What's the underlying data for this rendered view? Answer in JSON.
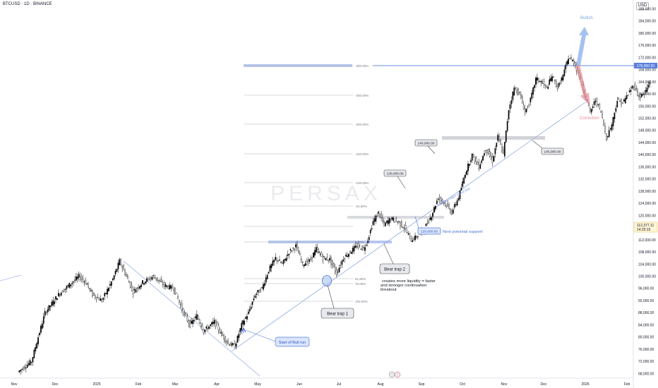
{
  "header": {
    "symbol_title": "BTCUSD · 1D · BINANCE",
    "currency": "USD",
    "watermark": "PERSAX"
  },
  "colors": {
    "up_candle": "#000000",
    "down_candle": "#ffffff",
    "trendline": "#7e9be0",
    "level_band": "#6d8fe0",
    "fib_line": "#b2b5be",
    "bullish": "#7fa6e8",
    "correction": "#e68a94"
  },
  "chart_data": {
    "type": "candlestick",
    "x_ticks": [
      "Nov",
      "Dec",
      "2025",
      "Feb",
      "Mar",
      "Apr",
      "May",
      "Jun",
      "Jul",
      "Aug",
      "Sep",
      "Oct",
      "Nov",
      "Dec",
      "2026",
      "Feb"
    ],
    "y_ticks": [
      68000,
      72000,
      76000,
      80000,
      84000,
      88000,
      92000,
      96000,
      100000,
      104000,
      108000,
      112000,
      116000,
      120000,
      124000,
      128000,
      132000,
      136000,
      140000,
      144000,
      148000,
      152000,
      156000,
      160000,
      164000,
      168000,
      172000,
      176000,
      180000,
      184000,
      188000
    ],
    "y_tick_labels": [
      "68,000.00",
      "72,000.00",
      "76,000.00",
      "80,000.00",
      "84,000.00",
      "88,000.00",
      "92,000.00",
      "96,000.00",
      "100,000.00",
      "104,000.00",
      "108,000.00",
      "112,000.00",
      "116,000.00",
      "120,000.00",
      "124,000.00",
      "128,000.00",
      "132,000.00",
      "136,000.00",
      "140,000.00",
      "144,000.00",
      "148,000.00",
      "152,000.00",
      "156,000.00",
      "160,000.00",
      "164,000.00",
      "168,000.00",
      "172,000.00",
      "176,000.00",
      "180,000.00",
      "184,000.00",
      "188,000.00"
    ],
    "ylim": [
      66500,
      190000
    ],
    "x_range_days": [
      -10,
      450
    ],
    "price_path": [
      [
        0,
        68500
      ],
      [
        10,
        72000
      ],
      [
        20,
        88000
      ],
      [
        30,
        94000
      ],
      [
        40,
        98000
      ],
      [
        45,
        100000
      ],
      [
        50,
        98000
      ],
      [
        55,
        94000
      ],
      [
        62,
        92000
      ],
      [
        70,
        99000
      ],
      [
        75,
        105000
      ],
      [
        80,
        100000
      ],
      [
        85,
        95000
      ],
      [
        92,
        98000
      ],
      [
        100,
        100000
      ],
      [
        108,
        97000
      ],
      [
        115,
        96000
      ],
      [
        122,
        88000
      ],
      [
        127,
        84000
      ],
      [
        132,
        87000
      ],
      [
        137,
        82000
      ],
      [
        145,
        85000
      ],
      [
        150,
        81000
      ],
      [
        155,
        78000
      ],
      [
        160,
        77000
      ],
      [
        165,
        84000
      ],
      [
        170,
        88000
      ],
      [
        175,
        94000
      ],
      [
        180,
        96000
      ],
      [
        185,
        102000
      ],
      [
        190,
        106000
      ],
      [
        195,
        104000
      ],
      [
        200,
        108000
      ],
      [
        205,
        110000
      ],
      [
        210,
        104000
      ],
      [
        215,
        105000
      ],
      [
        220,
        109000
      ],
      [
        225,
        106000
      ],
      [
        230,
        105500
      ],
      [
        235,
        101000
      ],
      [
        240,
        106000
      ],
      [
        245,
        108000
      ],
      [
        250,
        110000
      ],
      [
        255,
        109000
      ],
      [
        258,
        112000
      ],
      [
        262,
        118000
      ],
      [
        266,
        121000
      ],
      [
        270,
        117000
      ],
      [
        275,
        119000
      ],
      [
        280,
        118000
      ],
      [
        285,
        116000
      ],
      [
        290,
        112000
      ],
      [
        294,
        113000
      ],
      [
        300,
        116000
      ],
      [
        305,
        120000
      ],
      [
        310,
        126000
      ],
      [
        315,
        124000
      ],
      [
        320,
        121000
      ],
      [
        325,
        126000
      ],
      [
        330,
        134000
      ],
      [
        335,
        140000
      ],
      [
        340,
        136000
      ],
      [
        345,
        142000
      ],
      [
        350,
        138000
      ],
      [
        354,
        146000
      ],
      [
        358,
        140000
      ],
      [
        362,
        155000
      ],
      [
        366,
        162000
      ],
      [
        370,
        160000
      ],
      [
        374,
        154000
      ],
      [
        378,
        158000
      ],
      [
        382,
        165000
      ],
      [
        386,
        164000
      ],
      [
        390,
        162000
      ],
      [
        394,
        166000
      ],
      [
        398,
        162000
      ],
      [
        402,
        166000
      ],
      [
        406,
        172000
      ],
      [
        410,
        170500
      ],
      [
        414,
        166000
      ],
      [
        418,
        160000
      ],
      [
        422,
        154000
      ],
      [
        426,
        158000
      ],
      [
        430,
        154000
      ],
      [
        434,
        145500
      ],
      [
        438,
        150000
      ],
      [
        442,
        158000
      ],
      [
        446,
        157000
      ],
      [
        450,
        160000
      ],
      [
        454,
        163000
      ],
      [
        458,
        159000
      ],
      [
        462,
        160000
      ],
      [
        466,
        164000
      ]
    ],
    "current_price": "112,377.11",
    "countdown": "14:25:15",
    "level_labels": [
      "176,000.00"
    ]
  },
  "fib": {
    "ext_300": "-300.00%",
    "ext_250": "-250.00%",
    "ext_200": "-200.00%",
    "ext_150": "-150.00%",
    "ext_100": "-100.00%",
    "ext_61": "-61.80%",
    "zero": "0.00%",
    "r61": "61.80%",
    "r70": "70.00%",
    "r100": "100.00%"
  },
  "annotations": {
    "bullish": "Bullish",
    "correction": "Correction",
    "start_bull_run": "Start of Bull run",
    "bear_trap_1": "Bear trap 1",
    "bear_trap_2": "Bear trap 2",
    "liquidity_note_1": "creates more liquidity = faster",
    "liquidity_note_2": "and stronger continuation",
    "liquidity_note_3": "breakout",
    "next_support": "Next potential support",
    "support_price": "120,000.00",
    "trendline_label": "healthy major trend line",
    "p130": "130,000.00",
    "p140": "140,000.00",
    "p145": "145,000.00"
  }
}
